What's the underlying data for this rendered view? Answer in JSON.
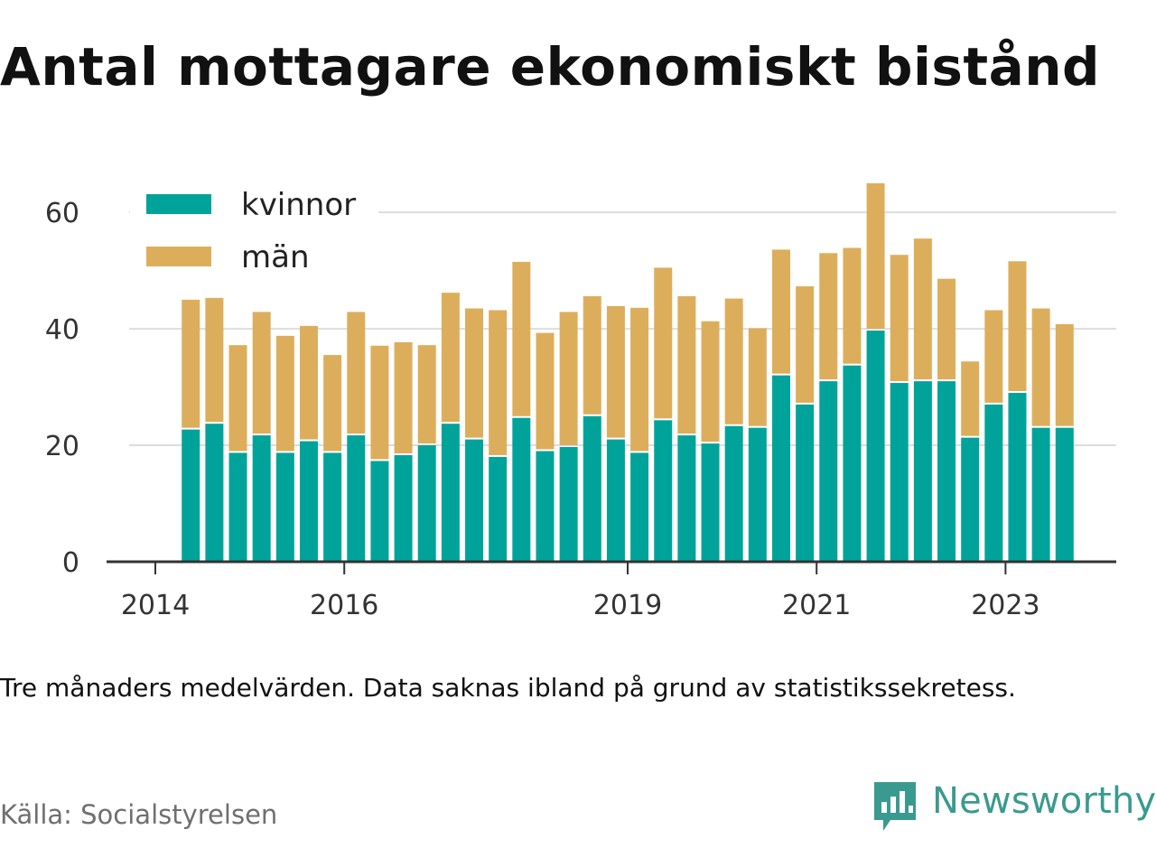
{
  "header": {
    "title": "Antal mottagare ekonomiskt bistånd"
  },
  "footer": {
    "note": "Tre månaders medelvärden. Data saknas ibland på grund av statistikssekretess.",
    "source": "Källa: Socialstyrelsen",
    "brand": "Newsworthy"
  },
  "colors": {
    "kvinnor": "#00a39a",
    "man": "#dcae5c",
    "grid": "#dddddd",
    "axis": "#333333",
    "brand": "#3a9a8f"
  },
  "chart_data": {
    "type": "bar",
    "stacked": true,
    "x": [
      "2014-Q2",
      "2014-Q3",
      "2014-Q4",
      "2015-Q1",
      "2015-Q2",
      "2015-Q3",
      "2015-Q4",
      "2016-Q1",
      "2016-Q2",
      "2016-Q3",
      "2016-Q4",
      "2017-Q1",
      "2017-Q2",
      "2017-Q3",
      "2017-Q4",
      "2018-Q1",
      "2018-Q2",
      "2018-Q3",
      "2018-Q4",
      "2019-Q1",
      "2019-Q2",
      "2019-Q3",
      "2019-Q4",
      "2020-Q1",
      "2020-Q2",
      "2020-Q3",
      "2020-Q4",
      "2021-Q1",
      "2021-Q2",
      "2021-Q3",
      "2021-Q4",
      "2022-Q1",
      "2022-Q2",
      "2022-Q3",
      "2022-Q4",
      "2023-Q1",
      "2023-Q2",
      "2023-Q3"
    ],
    "series": [
      {
        "name": "kvinnor",
        "values": [
          22.7,
          23.7,
          18.7,
          21.7,
          18.7,
          20.7,
          18.7,
          21.7,
          17.3,
          18.3,
          20.0,
          23.7,
          21.0,
          18.0,
          24.7,
          19.0,
          19.7,
          25.0,
          21.0,
          18.7,
          24.3,
          21.7,
          20.3,
          23.3,
          23.0,
          32.0,
          27.0,
          31.0,
          33.7,
          39.7,
          30.7,
          31.0,
          31.0,
          21.3,
          27.0,
          29.0,
          23.0,
          23.0
        ]
      },
      {
        "name": "män",
        "values": [
          22.3,
          21.6,
          18.5,
          21.2,
          20.1,
          19.8,
          16.8,
          21.2,
          19.8,
          19.4,
          17.2,
          22.5,
          22.5,
          25.2,
          26.8,
          20.3,
          23.2,
          20.6,
          22.9,
          24.9,
          26.2,
          23.9,
          21.0,
          21.9,
          17.1,
          21.6,
          20.3,
          22.0,
          20.2,
          25.3,
          22.0,
          24.5,
          17.6,
          13.1,
          16.2,
          22.6,
          20.5,
          17.8
        ]
      }
    ],
    "x_ticks": [
      {
        "label": "2014",
        "value": "2014-01"
      },
      {
        "label": "2016",
        "value": "2016-01"
      },
      {
        "label": "2019",
        "value": "2019-01"
      },
      {
        "label": "2021",
        "value": "2021-01"
      },
      {
        "label": "2023",
        "value": "2023-01"
      }
    ],
    "y_ticks": [
      0,
      20,
      40,
      60
    ],
    "ylim": [
      0,
      67
    ],
    "grid": true,
    "legend": "top-left"
  }
}
